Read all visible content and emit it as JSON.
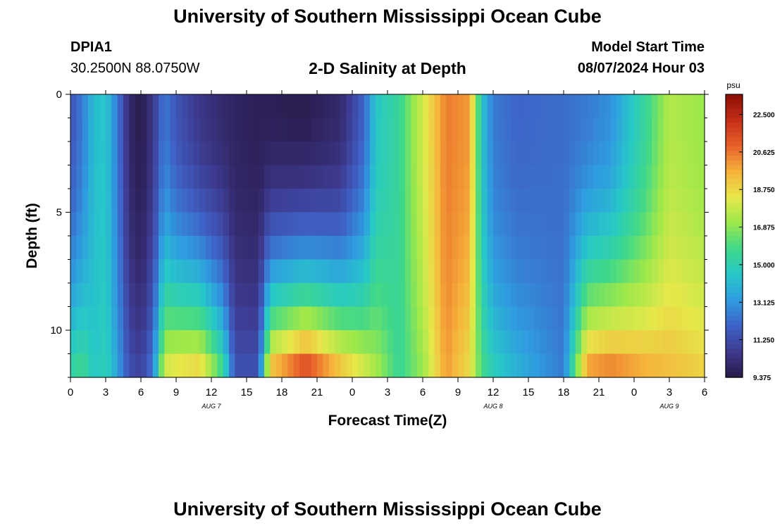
{
  "header": {
    "title": "University of Southern Mississippi Ocean Cube",
    "station": "DPIA1",
    "coords": "30.2500N  88.0750W",
    "plot_title": "2-D Salinity at Depth",
    "model_start_label": "Model Start Time",
    "model_start_value": "08/07/2024 Hour 03"
  },
  "footer": {
    "title": "University of Southern Mississippi Ocean Cube"
  },
  "chart_data": {
    "type": "heatmap",
    "title": "2-D Salinity at Depth",
    "xlabel": "Forecast Time(Z)",
    "ylabel": "Depth (ft)",
    "units": "psu",
    "x_range_hours": [
      0,
      54
    ],
    "x_tick_hours": [
      0,
      3,
      6,
      9,
      12,
      15,
      18,
      21,
      24,
      27,
      30,
      33,
      36,
      39,
      42,
      45,
      48,
      51,
      54
    ],
    "x_tick_labels": [
      "0",
      "3",
      "6",
      "9",
      "12",
      "15",
      "18",
      "21",
      "0",
      "3",
      "6",
      "9",
      "12",
      "15",
      "18",
      "21",
      "0",
      "3",
      "6"
    ],
    "date_labels": [
      {
        "text": "AUG 7",
        "hour": 12
      },
      {
        "text": "AUG 8",
        "hour": 36
      },
      {
        "text": "AUG 9",
        "hour": 51
      }
    ],
    "y_range_ft": [
      0,
      12
    ],
    "y_ticks": [
      0,
      5,
      10
    ],
    "depth_levels_ft": [
      0,
      1,
      2,
      3,
      4,
      5,
      6,
      7,
      8,
      9,
      10,
      11,
      12
    ],
    "colorbar": {
      "min": 9.375,
      "max": 23.5,
      "ticks": [
        "22.500",
        "20.625",
        "18.750",
        "16.875",
        "15.000",
        "13.125",
        "11.250",
        "9.375"
      ],
      "tick_values": [
        22.5,
        20.625,
        18.75,
        16.875,
        15.0,
        13.125,
        11.25,
        9.375
      ]
    },
    "salinity_keyframes": [
      {
        "hour": 0,
        "surface": 11.5,
        "bottom": 15.5
      },
      {
        "hour": 1,
        "surface": 12.5,
        "bottom": 16.0
      },
      {
        "hour": 2,
        "surface": 14.2,
        "bottom": 14.5
      },
      {
        "hour": 3,
        "surface": 14.5,
        "bottom": 15.0
      },
      {
        "hour": 4,
        "surface": 12.5,
        "bottom": 13.5
      },
      {
        "hour": 5,
        "surface": 10.0,
        "bottom": 11.5
      },
      {
        "hour": 6,
        "surface": 9.4,
        "bottom": 11.0
      },
      {
        "hour": 7,
        "surface": 10.5,
        "bottom": 12.5
      },
      {
        "hour": 8,
        "surface": 12.5,
        "bottom": 18.5
      },
      {
        "hour": 9,
        "surface": 11.5,
        "bottom": 19.0
      },
      {
        "hour": 11,
        "surface": 10.5,
        "bottom": 19.5
      },
      {
        "hour": 13,
        "surface": 10.0,
        "bottom": 16.0
      },
      {
        "hour": 14,
        "surface": 9.8,
        "bottom": 11.5
      },
      {
        "hour": 16,
        "surface": 9.6,
        "bottom": 11.5
      },
      {
        "hour": 17,
        "surface": 9.6,
        "bottom": 20.0
      },
      {
        "hour": 20,
        "surface": 9.5,
        "bottom": 22.5
      },
      {
        "hour": 23,
        "surface": 10.0,
        "bottom": 20.0
      },
      {
        "hour": 25,
        "surface": 12.0,
        "bottom": 18.5
      },
      {
        "hour": 26,
        "surface": 14.5,
        "bottom": 17.5
      },
      {
        "hour": 28,
        "surface": 15.5,
        "bottom": 15.5
      },
      {
        "hour": 30,
        "surface": 18.0,
        "bottom": 17.0
      },
      {
        "hour": 32,
        "surface": 20.5,
        "bottom": 20.0
      },
      {
        "hour": 34,
        "surface": 20.0,
        "bottom": 18.5
      },
      {
        "hour": 35,
        "surface": 14.5,
        "bottom": 16.0
      },
      {
        "hour": 36,
        "surface": 12.5,
        "bottom": 15.0
      },
      {
        "hour": 38,
        "surface": 12.0,
        "bottom": 14.0
      },
      {
        "hour": 42,
        "surface": 12.2,
        "bottom": 12.5
      },
      {
        "hour": 44,
        "surface": 12.5,
        "bottom": 20.5
      },
      {
        "hour": 46,
        "surface": 13.0,
        "bottom": 21.0
      },
      {
        "hour": 49,
        "surface": 15.5,
        "bottom": 20.0
      },
      {
        "hour": 51,
        "surface": 17.5,
        "bottom": 19.5
      },
      {
        "hour": 54,
        "surface": 17.0,
        "bottom": 19.0
      }
    ]
  },
  "colors": {
    "scale": [
      "#2a1a4a",
      "#3d3a8f",
      "#3f62c8",
      "#2f9be0",
      "#27c8c8",
      "#3fd88a",
      "#9ce84a",
      "#e6e84a",
      "#f5b23a",
      "#e8602a",
      "#c42e16",
      "#8a0e06"
    ]
  }
}
